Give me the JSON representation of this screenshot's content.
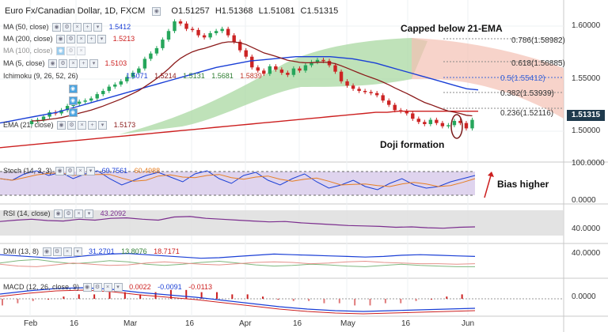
{
  "header": {
    "symbol": "Euro Fx/Canadian Dollar, 1D, FXCM",
    "open": "O1.51257",
    "high": "H1.51368",
    "low": "L1.51081",
    "close": "C1.51315"
  },
  "indicators": {
    "ma50": {
      "label": "MA (50, close)",
      "value": "1.5412",
      "color": "#1a3fd6"
    },
    "ma200": {
      "label": "MA (200, close)",
      "value": "1.5213",
      "color": "#cc1f1f"
    },
    "ma100": {
      "label": "MA (100, close)",
      "value": ""
    },
    "ma5": {
      "label": "MA (5, close)",
      "value": "1.5103",
      "color": "#cc1f1f"
    },
    "ichimoku": {
      "label": "Ichimoku (9, 26, 52, 26)",
      "values": [
        "1.5071",
        "1.5214",
        "1.5131",
        "1.5681",
        "1.5839"
      ]
    },
    "ema21": {
      "label": "EMA (21, close)",
      "value": "1.5173",
      "color": "#8b1a1a"
    },
    "stoch": {
      "label": "Stoch (14, 3, 3)",
      "k": "69.7561",
      "d": "60.4988"
    },
    "rsi": {
      "label": "RSI (14, close)",
      "value": "43.2092"
    },
    "dmi": {
      "label": "DMI (13, 8)",
      "values": [
        "31.2701",
        "13.8076",
        "18.7171"
      ]
    },
    "macd": {
      "label": "MACD (12, 26, close, 9)",
      "values": [
        "0.0022",
        "-0.0091",
        "-0.0113"
      ]
    }
  },
  "fib_levels": [
    {
      "label": "0.786(1.58982)"
    },
    {
      "label": "0.618(1.56885)"
    },
    {
      "label": "0.5(1.55412)"
    },
    {
      "label": "0.382(1.53939)"
    },
    {
      "label": "0.236(1.52116)"
    }
  ],
  "annotations": {
    "capped": "Capped below 21-EMA",
    "doji": "Doji formation",
    "bias": "Bias higher"
  },
  "price_tag": "1.51315",
  "colors": {
    "up": "#26a65b",
    "down": "#cc2424",
    "ma50": "#1a3fd6",
    "ma200": "#cc1f1f",
    "ema21": "#8b1a1a",
    "cloud_green": "#a9d8a2",
    "cloud_red": "#f4c0b4",
    "price_tag": "#1f3a4d"
  },
  "chart_data": {
    "type": "candlestick",
    "price_axis": {
      "labels": [
        "1.60000",
        "1.55000",
        "1.50000"
      ],
      "ylim": [
        1.475,
        1.625
      ]
    },
    "stoch_axis": {
      "labels": [
        "100.0000",
        "0.0000"
      ],
      "ylim": [
        0,
        100
      ]
    },
    "rsi_axis": {
      "labels": [
        "40.0000"
      ]
    },
    "dmi_axis": {
      "labels": [
        "40.0000"
      ]
    },
    "macd_axis": {
      "labels": [
        "0.0000"
      ]
    },
    "x_labels": [
      "Feb",
      "16",
      "Mar",
      "16",
      "Apr",
      "16",
      "May",
      "16",
      "Jun"
    ],
    "close": [
      1.512,
      1.513,
      1.516,
      1.52,
      1.519,
      1.522,
      1.526,
      1.528,
      1.53,
      1.531,
      1.533,
      1.537,
      1.54,
      1.544,
      1.546,
      1.549,
      1.553,
      1.557,
      1.561,
      1.57,
      1.575,
      1.58,
      1.588,
      1.596,
      1.605,
      1.603,
      1.598,
      1.597,
      1.592,
      1.59,
      1.594,
      1.596,
      1.598,
      1.592,
      1.586,
      1.578,
      1.572,
      1.562,
      1.559,
      1.556,
      1.563,
      1.56,
      1.557,
      1.555,
      1.561,
      1.559,
      1.564,
      1.567,
      1.569,
      1.568,
      1.564,
      1.558,
      1.549,
      1.545,
      1.542,
      1.54,
      1.539,
      1.538,
      1.536,
      1.531,
      1.527,
      1.522,
      1.521,
      1.519,
      1.514,
      1.511,
      1.509,
      1.513,
      1.51,
      1.507,
      1.508,
      1.512,
      1.51,
      1.505,
      1.513
    ],
    "ma50": [
      1.51,
      1.512,
      1.514,
      1.516,
      1.518,
      1.52,
      1.523,
      1.526,
      1.529,
      1.532,
      1.535,
      1.538,
      1.541,
      1.544,
      1.547,
      1.55,
      1.553,
      1.556,
      1.559,
      1.562,
      1.564,
      1.566,
      1.568,
      1.569,
      1.57,
      1.571,
      1.572,
      1.572,
      1.572,
      1.572,
      1.571,
      1.57,
      1.568,
      1.566,
      1.563,
      1.56,
      1.557,
      1.554,
      1.551,
      1.548,
      1.545,
      1.542,
      1.541
    ],
    "ma200": [
      1.487,
      1.488,
      1.489,
      1.49,
      1.491,
      1.492,
      1.493,
      1.494,
      1.495,
      1.496,
      1.497,
      1.498,
      1.499,
      1.5,
      1.501,
      1.502,
      1.503,
      1.504,
      1.505,
      1.506,
      1.507,
      1.508,
      1.509,
      1.51,
      1.511,
      1.512,
      1.513,
      1.514,
      1.515,
      1.516,
      1.517,
      1.518,
      1.519,
      1.52,
      1.52,
      1.521,
      1.521,
      1.521,
      1.521,
      1.521,
      1.521,
      1.521,
      1.521
    ],
    "stoch_k": [
      60,
      55,
      75,
      85,
      70,
      80,
      60,
      75,
      85,
      60,
      40,
      55,
      70,
      80,
      65,
      50,
      75,
      85,
      60,
      45,
      70,
      80,
      55,
      40,
      60,
      75,
      50,
      30,
      40,
      55,
      35,
      25,
      45,
      60,
      40,
      30,
      35,
      50,
      60,
      70
    ],
    "rsi": [
      55,
      58,
      60,
      57,
      56,
      60,
      58,
      62,
      63,
      60,
      58,
      65,
      66,
      62,
      60,
      58,
      56,
      54,
      55,
      52,
      50,
      48,
      46,
      45,
      44,
      42,
      43,
      41,
      40,
      42,
      43
    ],
    "macd_hist": [
      -0.003,
      -0.002,
      -0.001,
      0.0,
      0.001,
      0.002,
      0.002,
      0.003,
      0.003,
      0.002,
      0.003,
      0.004,
      0.004,
      0.003,
      0.003,
      0.002,
      0.002,
      0.001,
      0.0,
      -0.001,
      -0.001,
      -0.002,
      -0.002,
      -0.003,
      -0.003,
      -0.002,
      -0.002,
      -0.001,
      0.0,
      0.001,
      0.002
    ]
  }
}
